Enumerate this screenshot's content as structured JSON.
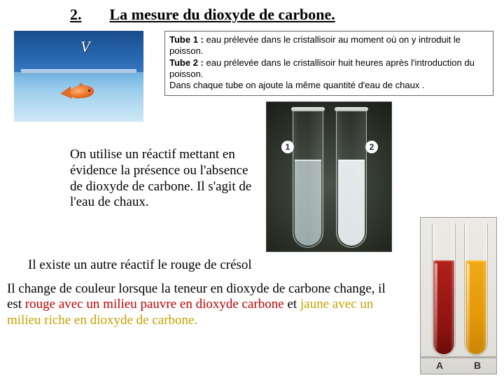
{
  "title": {
    "num": "2.",
    "text": "La mesure du dioxyde de carbone."
  },
  "tube_desc": {
    "l1b": "Tube 1 :",
    "l1": " eau prélevée dans le cristallisoir au moment où on y introduit le poisson.",
    "l2b": "Tube 2 :",
    "l2": " eau prélevée dans le cristallisoir huit heures après l'introduction du poisson.",
    "l3": "Dans chaque tube on ajoute la même quantité d'eau de chaux ."
  },
  "reactif": "On utilise un réactif mettant en évidence la présence ou l'absence de dioxyde de carbone. Il s'agit de l'eau de chaux.",
  "para2": "Il existe un autre réactif  le rouge de crésol",
  "para3": {
    "a": "Il change de couleur lorsque la teneur en dioxyde de carbone change, il est ",
    "red": "rouge avec un milieu pauvre en dioxyde carbone",
    "b": " et ",
    "yellow": "jaune avec un milieu riche en dioxyde de carbone.",
    "c": ""
  },
  "tubes12": {
    "n1": "1",
    "n2": "2"
  },
  "tubesAB": {
    "a": "A",
    "b": "B"
  },
  "colors": {
    "red_text": "#c00000",
    "yellow_text": "#c8a000",
    "tubeA": "#8e130f",
    "tubeB": "#e39808"
  }
}
